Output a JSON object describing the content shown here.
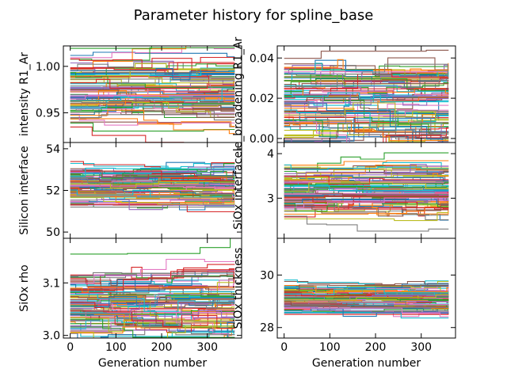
{
  "chart_data": {
    "type": "line",
    "title": "Parameter history for spline_base",
    "series_count": 100,
    "x": {
      "range": [
        0,
        360
      ],
      "ticks": [
        0,
        100,
        200,
        300
      ]
    },
    "panels": [
      {
        "id": "intensity",
        "ylabel": "intensity R1_Ar",
        "xlabel": "",
        "xlim": [
          -15,
          375
        ],
        "ylim": [
          0.918,
          1.022
        ],
        "yticks": [
          0.95,
          1.0
        ],
        "yticklabels": [
          "0.95",
          "1.00"
        ],
        "center": 0.975,
        "spread": 0.018,
        "show_xticklabels": false
      },
      {
        "id": "broadening",
        "ylabel": "le_broadening R1_Ar",
        "xlabel": "",
        "xlim": [
          -15,
          375
        ],
        "ylim": [
          -0.002,
          0.046
        ],
        "yticks": [
          0.0,
          0.02,
          0.04
        ],
        "yticklabels": [
          "0.00",
          "0.02",
          "0.04"
        ],
        "center": 0.019,
        "spread": 0.011,
        "show_xticklabels": false
      },
      {
        "id": "silicon_interface",
        "ylabel": "Silicon interface",
        "xlabel": "",
        "xlim": [
          -15,
          375
        ],
        "ylim": [
          49.7,
          54.3
        ],
        "yticks": [
          50,
          52,
          54
        ],
        "yticklabels": [
          "50",
          "52",
          "54"
        ],
        "center": 52.2,
        "spread": 0.5,
        "show_xticklabels": false
      },
      {
        "id": "siox_interface",
        "ylabel": "SiOx interface",
        "xlabel": "",
        "xlim": [
          -15,
          375
        ],
        "ylim": [
          2.1,
          4.25
        ],
        "yticks": [
          3,
          4
        ],
        "yticklabels": [
          "3",
          "4"
        ],
        "center": 3.15,
        "spread": 0.28,
        "show_xticklabels": false
      },
      {
        "id": "siox_rho",
        "ylabel": "SiOx rho",
        "xlabel": "Generation number",
        "xlim": [
          -15,
          375
        ],
        "ylim": [
          2.995,
          3.185
        ],
        "yticks": [
          3.0,
          3.1
        ],
        "yticklabels": [
          "3.0",
          "3.1"
        ],
        "center": 3.065,
        "spread": 0.035,
        "show_xticklabels": true
      },
      {
        "id": "siox_thickness",
        "ylabel": "SiOx thickness",
        "xlabel": "Generation number",
        "xlim": [
          -15,
          375
        ],
        "ylim": [
          27.6,
          31.4
        ],
        "yticks": [
          28,
          30
        ],
        "yticklabels": [
          "28",
          "30"
        ],
        "center": 29.1,
        "spread": 0.3,
        "show_xticklabels": true
      }
    ],
    "colors": [
      "#1f77b4",
      "#ff7f0e",
      "#2ca02c",
      "#d62728",
      "#9467bd",
      "#8c564b",
      "#e377c2",
      "#7f7f7f",
      "#bcbd22",
      "#17becf"
    ],
    "grid": false,
    "legend": "none"
  }
}
